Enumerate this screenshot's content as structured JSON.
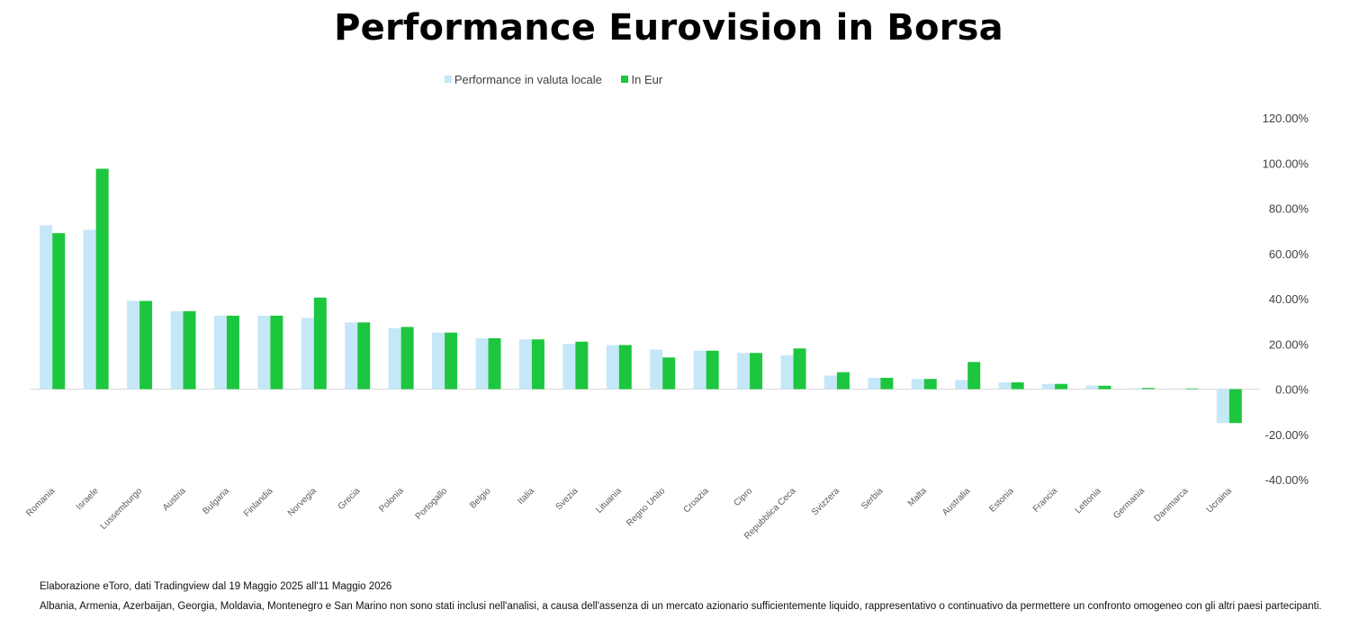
{
  "title": "Performance Eurovision in Borsa",
  "footnotes": {
    "source": "Elaborazione eToro, dati Tradingview dal 19 Maggio 2025 all'11 Maggio 2026",
    "exclusion": "Albania, Armenia, Azerbaijan, Georgia, Moldavia, Montenegro e San Marino non sono stati inclusi nell'analisi, a causa dell'assenza di un mercato azionario sufficientemente liquido, rappresentativo o continuativo da permettere un confronto omogeneo con gli altri paesi partecipanti."
  },
  "colors": {
    "local": "#c5e8f8",
    "eur": "#1dc63f",
    "axis": "#d9d9d9"
  },
  "chart_data": {
    "type": "bar",
    "title": "Performance Eurovision in Borsa",
    "xlabel": "",
    "ylabel": "",
    "ylim": [
      -40,
      120
    ],
    "y_ticks": [
      "120.00%",
      "100.00%",
      "80.00%",
      "60.00%",
      "40.00%",
      "20.00%",
      "0.00%",
      "-20.00%",
      "-40.00%"
    ],
    "y_axis_position": "right",
    "legend_position": "top-center",
    "grid": false,
    "categories": [
      "Romania",
      "Israele",
      "Lussemburgo",
      "Austria",
      "Bulgaria",
      "Finlandia",
      "Norvegia",
      "Grecia",
      "Polonia",
      "Portogallo",
      "Belgio",
      "Italia",
      "Svezia",
      "Lituania",
      "Regno Unito",
      "Croazia",
      "Cipro",
      "Repubblica Ceca",
      "Svizzera",
      "Serbia",
      "Malta",
      "Australia",
      "Estonia",
      "Francia",
      "Lettonia",
      "Germania",
      "Danimarca",
      "Ucraina"
    ],
    "series": [
      {
        "name": "Performance in valuta locale",
        "values": [
          72.5,
          70.5,
          39,
          34.5,
          32.5,
          32.5,
          31.5,
          29.5,
          27,
          25,
          22.5,
          22,
          20,
          19.5,
          17.5,
          17,
          16,
          15,
          6,
          5,
          4.5,
          4,
          3,
          2.3,
          1.5,
          0.5,
          0.3,
          -15
        ]
      },
      {
        "name": "In Eur",
        "values": [
          69,
          97.5,
          39,
          34.5,
          32.5,
          32.5,
          40.5,
          29.5,
          27.5,
          25,
          22.5,
          22,
          21,
          19.5,
          14,
          17,
          16,
          18,
          7.5,
          5,
          4.5,
          12,
          3,
          2.3,
          1.5,
          0.5,
          0.3,
          -15
        ]
      }
    ]
  }
}
